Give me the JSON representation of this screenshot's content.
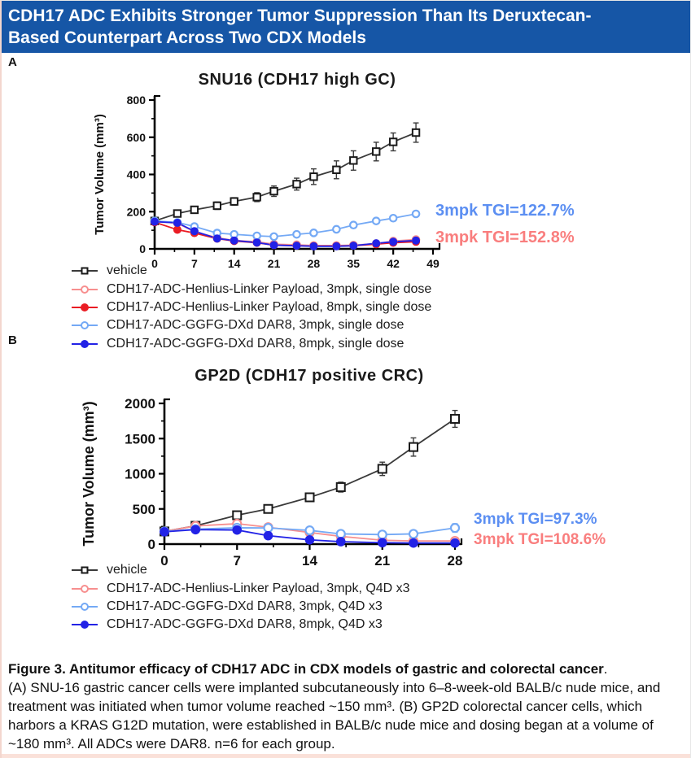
{
  "banner": {
    "line1": "CDH17 ADC Exhibits Stronger Tumor Suppression Than Its Deruxtecan-",
    "line2": "Based Counterpart Across Two CDX Models"
  },
  "panels": {
    "a": {
      "label": "A"
    },
    "b": {
      "label": "B"
    }
  },
  "colors": {
    "banner_bg": "#1656A6",
    "accent_strip": "#FAE1D9",
    "annotation_blue": "#5C8FF2",
    "annotation_pink": "#F97E7E"
  },
  "chart_data": [
    {
      "type": "line",
      "panel": "A",
      "title": "SNU16 (CDH17 high GC)",
      "xlabel": "",
      "ylabel": "Tumor Volume (mm³)",
      "xlim": [
        0,
        49
      ],
      "ylim": [
        0,
        800
      ],
      "xticks": [
        0,
        7,
        14,
        21,
        28,
        35,
        42,
        49
      ],
      "yticks": [
        0,
        200,
        400,
        600,
        800
      ],
      "grid": false,
      "legend_position": "below",
      "x": [
        0,
        4,
        7,
        11,
        14,
        18,
        21,
        25,
        28,
        32,
        35,
        39,
        42,
        46
      ],
      "series": [
        {
          "name": "vehicle",
          "color": "#3a3a3a",
          "marker": "open-square",
          "values": [
            150,
            190,
            210,
            232,
            255,
            278,
            310,
            348,
            388,
            425,
            475,
            523,
            575,
            625
          ],
          "err": [
            12,
            16,
            18,
            20,
            20,
            24,
            28,
            32,
            42,
            48,
            52,
            50,
            48,
            52
          ]
        },
        {
          "name": "CDH17-ADC-Henlius-Linker Payload, 3mpk, single dose",
          "color": "#F78F8F",
          "marker": "open-circle",
          "values": [
            148,
            138,
            92,
            60,
            45,
            38,
            25,
            22,
            18,
            18,
            20,
            28,
            42,
            50
          ],
          "err": [
            8,
            8,
            8,
            6,
            5,
            5,
            4,
            4,
            4,
            4,
            4,
            5,
            6,
            8
          ]
        },
        {
          "name": "CDH17-ADC-Henlius-Linker Payload, 8mpk, single dose",
          "color": "#EA1C24",
          "marker": "filled-circle",
          "values": [
            143,
            103,
            85,
            55,
            42,
            33,
            20,
            17,
            15,
            15,
            17,
            25,
            33,
            38
          ],
          "err": [
            8,
            10,
            8,
            6,
            5,
            4,
            4,
            4,
            4,
            4,
            4,
            5,
            6,
            6
          ]
        },
        {
          "name": "CDH17-ADC-GGFG-DXd DAR8, 3mpk, single dose",
          "color": "#74A9F5",
          "marker": "open-circle",
          "values": [
            150,
            142,
            120,
            85,
            78,
            70,
            66,
            78,
            86,
            105,
            128,
            150,
            165,
            188
          ],
          "err": [
            7,
            7,
            8,
            8,
            8,
            8,
            8,
            8,
            8,
            10,
            10,
            10,
            12,
            12
          ]
        },
        {
          "name": "CDH17-ADC-GGFG-DXd DAR8, 8mpk, single dose",
          "color": "#2222E6",
          "marker": "filled-circle",
          "values": [
            146,
            140,
            95,
            56,
            45,
            34,
            20,
            17,
            14,
            14,
            17,
            30,
            38,
            45
          ],
          "err": [
            7,
            7,
            8,
            6,
            5,
            4,
            4,
            4,
            4,
            4,
            4,
            5,
            5,
            6
          ]
        }
      ],
      "annotations": [
        {
          "text": "3mpk TGI=122.7%",
          "color": "#5C8FF2"
        },
        {
          "text": "3mpk TGI=152.8%",
          "color": "#F97E7E"
        }
      ]
    },
    {
      "type": "line",
      "panel": "B",
      "title": "GP2D (CDH17 positive CRC)",
      "xlabel": "",
      "ylabel": "Tumor Volume (mm³)",
      "xlim": [
        0,
        28
      ],
      "ylim": [
        0,
        2000
      ],
      "xticks": [
        0,
        7,
        14,
        21,
        28
      ],
      "yticks": [
        0,
        500,
        1000,
        1500,
        2000
      ],
      "grid": false,
      "legend_position": "below",
      "x": [
        0,
        3,
        7,
        10,
        14,
        17,
        21,
        24,
        28
      ],
      "series": [
        {
          "name": "vehicle",
          "color": "#3a3a3a",
          "marker": "open-square",
          "values": [
            180,
            260,
            410,
            500,
            665,
            810,
            1070,
            1380,
            1780
          ],
          "err": [
            20,
            25,
            35,
            40,
            55,
            70,
            95,
            130,
            120
          ]
        },
        {
          "name": "CDH17-ADC-Henlius-Linker Payload, 3mpk, Q4D x3",
          "color": "#F78F8F",
          "marker": "open-circle",
          "values": [
            180,
            258,
            290,
            240,
            165,
            110,
            55,
            45,
            45
          ],
          "err": [
            15,
            18,
            25,
            20,
            18,
            15,
            10,
            8,
            8
          ]
        },
        {
          "name": "CDH17-ADC-GGFG-DXd DAR8, 3mpk, Q4D x3",
          "color": "#74A9F5",
          "marker": "open-circle",
          "values": [
            180,
            212,
            232,
            230,
            195,
            145,
            135,
            145,
            230
          ],
          "err": [
            12,
            15,
            18,
            18,
            20,
            18,
            15,
            25,
            60
          ]
        },
        {
          "name": "CDH17-ADC-GGFG-DXd DAR8, 8mpk, Q4D x3",
          "color": "#2222E6",
          "marker": "filled-circle",
          "values": [
            175,
            205,
            200,
            120,
            60,
            35,
            20,
            15,
            15
          ],
          "err": [
            12,
            15,
            18,
            15,
            10,
            8,
            5,
            5,
            5
          ]
        }
      ],
      "annotations": [
        {
          "text": "3mpk TGI=97.3%",
          "color": "#5C8FF2"
        },
        {
          "text": "3mpk TGI=108.6%",
          "color": "#F97E7E"
        }
      ]
    }
  ],
  "caption": {
    "title_bold": "Figure 3. Antitumor efficacy of CDH17 ADC in CDX models of gastric and colorectal cancer",
    "title_period": ".",
    "body": "(A) SNU-16 gastric cancer cells were implanted subcutaneously into 6–8-week-old BALB/c nude mice, and treatment was initiated when tumor volume reached ~150 mm³. (B) GP2D colorectal cancer cells, which harbors a KRAS G12D mutation, were established in BALB/c nude mice and dosing began at a volume of ~180 mm³. All ADCs were DAR8. n=6 for each group."
  }
}
